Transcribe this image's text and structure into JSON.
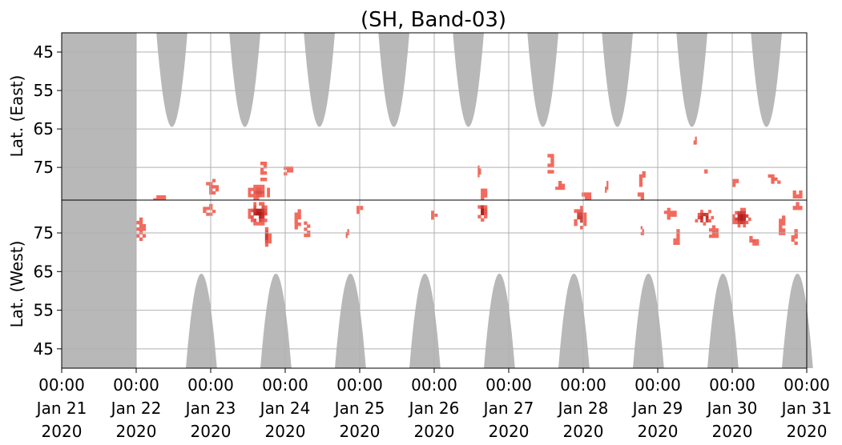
{
  "chart_data": {
    "type": "heatmap",
    "title": "(SH, Band-03)",
    "panels": [
      {
        "name": "east",
        "ylabel": "Lat. (East)",
        "yticks": [
          "45",
          "55",
          "65",
          "75"
        ],
        "ylim_top": 40,
        "ylim_bottom": 83.5
      },
      {
        "name": "west",
        "ylabel": "Lat. (West)",
        "yticks": [
          "75",
          "65",
          "55",
          "45"
        ],
        "ylim_top": 83.5,
        "ylim_bottom": 40
      }
    ],
    "x_start": "2020-01-21T00:00",
    "x_end": "2020-01-31T00:00",
    "xticks": [
      {
        "time": "00:00",
        "date": "Jan 21",
        "year": "2020"
      },
      {
        "time": "00:00",
        "date": "Jan 22",
        "year": "2020"
      },
      {
        "time": "00:00",
        "date": "Jan 23",
        "year": "2020"
      },
      {
        "time": "00:00",
        "date": "Jan 24",
        "year": "2020"
      },
      {
        "time": "00:00",
        "date": "Jan 25",
        "year": "2020"
      },
      {
        "time": "00:00",
        "date": "Jan 26",
        "year": "2020"
      },
      {
        "time": "00:00",
        "date": "Jan 27",
        "year": "2020"
      },
      {
        "time": "00:00",
        "date": "Jan 28",
        "year": "2020"
      },
      {
        "time": "00:00",
        "date": "Jan 29",
        "year": "2020"
      },
      {
        "time": "00:00",
        "date": "Jan 30",
        "year": "2020"
      },
      {
        "time": "00:00",
        "date": "Jan 31",
        "year": "2020"
      }
    ],
    "grid": true,
    "colors": {
      "no_data": "#b8b8b8",
      "auroral_low": "#f26b5e",
      "auroral_high": "#a80f0f",
      "grid": "#b0b0b0",
      "divider": "#000000"
    },
    "no_data_periods": [
      {
        "start": "2020-01-21T00:00",
        "end": "2020-01-22T00:00",
        "panel": "both"
      }
    ],
    "day_gaps": {
      "east": [
        {
          "center": "2020-01-22T11:30",
          "half_width_hours": 5,
          "reach_lat": 64.5
        },
        {
          "center": "2020-01-23T11:00",
          "half_width_hours": 5,
          "reach_lat": 64.5
        },
        {
          "center": "2020-01-24T11:00",
          "half_width_hours": 5,
          "reach_lat": 64.5
        },
        {
          "center": "2020-01-25T11:00",
          "half_width_hours": 5,
          "reach_lat": 64.5
        },
        {
          "center": "2020-01-26T11:00",
          "half_width_hours": 5,
          "reach_lat": 64.5
        },
        {
          "center": "2020-01-27T11:00",
          "half_width_hours": 5,
          "reach_lat": 64.5
        },
        {
          "center": "2020-01-28T11:00",
          "half_width_hours": 5,
          "reach_lat": 64.5
        },
        {
          "center": "2020-01-29T11:00",
          "half_width_hours": 5,
          "reach_lat": 64.5
        },
        {
          "center": "2020-01-30T11:00",
          "half_width_hours": 5,
          "reach_lat": 64.5
        }
      ],
      "west": [
        {
          "center": "2020-01-22T21:00",
          "half_width_hours": 5,
          "reach_lat": 64.5
        },
        {
          "center": "2020-01-23T21:00",
          "half_width_hours": 5,
          "reach_lat": 64.5
        },
        {
          "center": "2020-01-24T21:00",
          "half_width_hours": 5,
          "reach_lat": 64.5
        },
        {
          "center": "2020-01-25T21:00",
          "half_width_hours": 5,
          "reach_lat": 64.5
        },
        {
          "center": "2020-01-26T21:00",
          "half_width_hours": 5,
          "reach_lat": 64.5
        },
        {
          "center": "2020-01-27T21:00",
          "half_width_hours": 5,
          "reach_lat": 64.5
        },
        {
          "center": "2020-01-28T21:00",
          "half_width_hours": 5,
          "reach_lat": 64.5
        },
        {
          "center": "2020-01-29T21:00",
          "half_width_hours": 5,
          "reach_lat": 64.5
        },
        {
          "center": "2020-01-30T21:00",
          "half_width_hours": 5,
          "reach_lat": 64.5
        }
      ]
    },
    "auroral_blobs": [
      {
        "panel": "east",
        "time": "2020-01-22T07:30",
        "lat": 83.0,
        "hours": 4,
        "lat_span": 1.5,
        "strength": 0.4
      },
      {
        "panel": "west",
        "time": "2020-01-22T01:30",
        "lat": 76.0,
        "hours": 3,
        "lat_span": 6.0,
        "strength": 0.4
      },
      {
        "panel": "east",
        "time": "2020-01-23T00:30",
        "lat": 80.0,
        "hours": 4,
        "lat_span": 4.0,
        "strength": 0.6
      },
      {
        "panel": "west",
        "time": "2020-01-22T23:30",
        "lat": 81.0,
        "hours": 4,
        "lat_span": 3.0,
        "strength": 0.5
      },
      {
        "panel": "east",
        "time": "2020-01-23T15:30",
        "lat": 81.5,
        "hours": 7,
        "lat_span": 4.0,
        "strength": 0.7
      },
      {
        "panel": "east",
        "time": "2020-01-23T17:00",
        "lat": 76.0,
        "hours": 2,
        "lat_span": 5.0,
        "strength": 0.5
      },
      {
        "panel": "west",
        "time": "2020-01-23T15:30",
        "lat": 80.0,
        "hours": 7,
        "lat_span": 6.0,
        "strength": 0.95
      },
      {
        "panel": "west",
        "time": "2020-01-23T18:00",
        "lat": 74.0,
        "hours": 3,
        "lat_span": 5.0,
        "strength": 0.8
      },
      {
        "panel": "east",
        "time": "2020-01-24T00:30",
        "lat": 75.5,
        "hours": 4,
        "lat_span": 3.0,
        "strength": 0.5
      },
      {
        "panel": "west",
        "time": "2020-01-24T04:00",
        "lat": 79.0,
        "hours": 2,
        "lat_span": 6.0,
        "strength": 0.5
      },
      {
        "panel": "west",
        "time": "2020-01-24T07:00",
        "lat": 76.0,
        "hours": 2,
        "lat_span": 4.0,
        "strength": 0.4
      },
      {
        "panel": "west",
        "time": "2020-01-24T20:00",
        "lat": 74.5,
        "hours": 1,
        "lat_span": 3.0,
        "strength": 0.4
      },
      {
        "panel": "west",
        "time": "2020-01-25T00:00",
        "lat": 81.0,
        "hours": 2,
        "lat_span": 2.0,
        "strength": 0.5
      },
      {
        "panel": "west",
        "time": "2020-01-26T00:00",
        "lat": 80.0,
        "hours": 2,
        "lat_span": 3.0,
        "strength": 0.5
      },
      {
        "panel": "east",
        "time": "2020-01-26T14:30",
        "lat": 76.0,
        "hours": 1,
        "lat_span": 3.0,
        "strength": 0.5
      },
      {
        "panel": "east",
        "time": "2020-01-26T16:00",
        "lat": 82.0,
        "hours": 2,
        "lat_span": 3.0,
        "strength": 0.6
      },
      {
        "panel": "west",
        "time": "2020-01-26T15:30",
        "lat": 80.5,
        "hours": 3,
        "lat_span": 5.0,
        "strength": 0.95
      },
      {
        "panel": "east",
        "time": "2020-01-27T13:30",
        "lat": 74.0,
        "hours": 2,
        "lat_span": 5.0,
        "strength": 0.5
      },
      {
        "panel": "east",
        "time": "2020-01-27T16:30",
        "lat": 80.0,
        "hours": 3,
        "lat_span": 3.0,
        "strength": 0.6
      },
      {
        "panel": "west",
        "time": "2020-01-27T23:00",
        "lat": 79.0,
        "hours": 4,
        "lat_span": 6.0,
        "strength": 0.8
      },
      {
        "panel": "east",
        "time": "2020-01-28T01:00",
        "lat": 82.5,
        "hours": 3,
        "lat_span": 2.0,
        "strength": 0.5
      },
      {
        "panel": "east",
        "time": "2020-01-28T07:30",
        "lat": 80.0,
        "hours": 1,
        "lat_span": 3.0,
        "strength": 0.5
      },
      {
        "panel": "east",
        "time": "2020-01-28T19:00",
        "lat": 78.0,
        "hours": 2,
        "lat_span": 4.0,
        "strength": 0.5
      },
      {
        "panel": "east",
        "time": "2020-01-28T18:30",
        "lat": 82.5,
        "hours": 2,
        "lat_span": 2.0,
        "strength": 0.6
      },
      {
        "panel": "west",
        "time": "2020-01-28T19:00",
        "lat": 76.0,
        "hours": 1,
        "lat_span": 3.0,
        "strength": 0.4
      },
      {
        "panel": "west",
        "time": "2020-01-29T04:00",
        "lat": 80.0,
        "hours": 4,
        "lat_span": 3.0,
        "strength": 0.6
      },
      {
        "panel": "west",
        "time": "2020-01-29T06:00",
        "lat": 74.0,
        "hours": 2,
        "lat_span": 4.0,
        "strength": 0.5
      },
      {
        "panel": "east",
        "time": "2020-01-29T12:00",
        "lat": 68.0,
        "hours": 1,
        "lat_span": 2.0,
        "strength": 0.5
      },
      {
        "panel": "east",
        "time": "2020-01-29T15:30",
        "lat": 76.5,
        "hours": 1,
        "lat_span": 2.0,
        "strength": 0.5
      },
      {
        "panel": "west",
        "time": "2020-01-29T15:00",
        "lat": 79.0,
        "hours": 6,
        "lat_span": 4.0,
        "strength": 0.9
      },
      {
        "panel": "west",
        "time": "2020-01-29T18:00",
        "lat": 75.0,
        "hours": 3,
        "lat_span": 4.0,
        "strength": 0.6
      },
      {
        "panel": "east",
        "time": "2020-01-30T01:00",
        "lat": 79.0,
        "hours": 2,
        "lat_span": 2.0,
        "strength": 0.5
      },
      {
        "panel": "west",
        "time": "2020-01-30T03:00",
        "lat": 79.0,
        "hours": 6,
        "lat_span": 5.0,
        "strength": 0.95
      },
      {
        "panel": "west",
        "time": "2020-01-30T07:00",
        "lat": 73.0,
        "hours": 3,
        "lat_span": 4.0,
        "strength": 0.6
      },
      {
        "panel": "east",
        "time": "2020-01-30T13:30",
        "lat": 78.0,
        "hours": 4,
        "lat_span": 4.0,
        "strength": 0.6
      },
      {
        "panel": "east",
        "time": "2020-01-30T21:00",
        "lat": 82.0,
        "hours": 3,
        "lat_span": 2.0,
        "strength": 0.6
      },
      {
        "panel": "west",
        "time": "2020-01-30T16:00",
        "lat": 77.0,
        "hours": 2,
        "lat_span": 5.0,
        "strength": 0.5
      },
      {
        "panel": "west",
        "time": "2020-01-30T20:00",
        "lat": 74.0,
        "hours": 2,
        "lat_span": 4.0,
        "strength": 0.5
      },
      {
        "panel": "west",
        "time": "2020-01-30T21:00",
        "lat": 82.0,
        "hours": 3,
        "lat_span": 2.0,
        "strength": 0.6
      }
    ]
  }
}
